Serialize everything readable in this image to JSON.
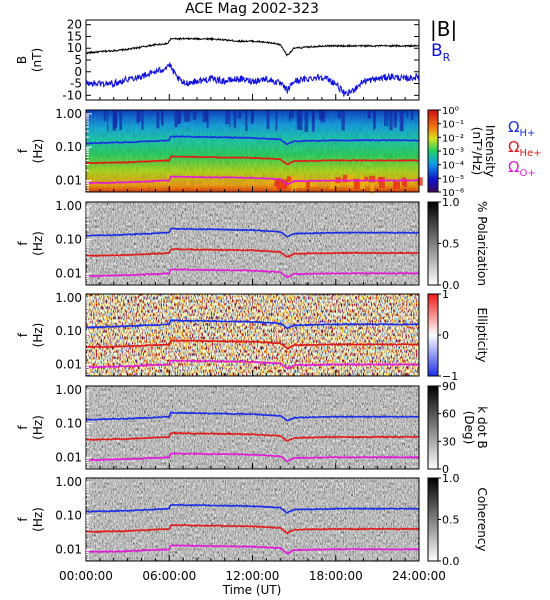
{
  "title": "ACE Mag 2002-323",
  "x_axis": {
    "label": "Time (UT)",
    "ticks": [
      "00:00:00",
      "06:00:00",
      "12:00:00",
      "18:00:00",
      "24:00:00"
    ],
    "range_hours": [
      0,
      24
    ]
  },
  "colors": {
    "B_total": "#000000",
    "B_R": "#1010e0",
    "omega_H": "#1a2ee6",
    "omega_He": "#e11a1a",
    "omega_O": "#e21ad8"
  },
  "legend_top": {
    "total": "|B|",
    "radial": "B",
    "radial_sub": "R"
  },
  "legend_gyro": [
    {
      "base": "Ω",
      "sub": "H+",
      "color": "#1a2ee6"
    },
    {
      "base": "Ω",
      "sub": "He+",
      "color": "#e11a1a"
    },
    {
      "base": "Ω",
      "sub": "O+",
      "color": "#e21ad8"
    }
  ],
  "panels": [
    {
      "id": "b",
      "ylabel": [
        "B",
        "(nT)"
      ],
      "yticks": [
        "20",
        "15",
        "10",
        "5",
        "0",
        "-5",
        "-10"
      ]
    },
    {
      "id": "intensity",
      "ylabel": [
        "f",
        "(Hz)"
      ],
      "yticks": [
        "1.00",
        "0.10",
        "0.01"
      ],
      "cbar": {
        "label": "Intensity",
        "label2": "(nT²/Hz)",
        "ticks": [
          "10⁰",
          "10⁻¹",
          "10⁻²",
          "10⁻³",
          "10⁻⁴",
          "10⁻⁵",
          "10⁻⁶"
        ],
        "scale": "jet"
      }
    },
    {
      "id": "polarization",
      "ylabel": [
        "f",
        "(Hz)"
      ],
      "yticks": [
        "1.00",
        "0.10",
        "0.01"
      ],
      "cbar": {
        "label": "% Polarization",
        "label2": "",
        "ticks": [
          "1.0",
          "0.5",
          "0.0"
        ],
        "scale": "gray"
      }
    },
    {
      "id": "ellipticity",
      "ylabel": [
        "f",
        "(Hz)"
      ],
      "yticks": [
        "1.00",
        "0.10",
        "0.01"
      ],
      "cbar": {
        "label": "Ellipticity",
        "label2": "",
        "ticks": [
          "1",
          "0",
          "−1"
        ],
        "scale": "bwr"
      }
    },
    {
      "id": "kdotb",
      "ylabel": [
        "f",
        "(Hz)"
      ],
      "yticks": [
        "1.00",
        "0.10",
        "0.01"
      ],
      "cbar": {
        "label": "k dot B",
        "label2": "(Deg)",
        "ticks": [
          "90",
          "60",
          "30",
          "0"
        ],
        "scale": "gray"
      }
    },
    {
      "id": "coherency",
      "ylabel": [
        "f",
        "(Hz)"
      ],
      "yticks": [
        "1.00",
        "0.10",
        "0.01"
      ],
      "cbar": {
        "label": "Coherency",
        "label2": "",
        "ticks": [
          "1.0",
          "0.5",
          "0.0"
        ],
        "scale": "gray"
      }
    }
  ],
  "chart_data": [
    {
      "type": "line",
      "x_unit": "hours UT",
      "ylim": [
        -12,
        22
      ],
      "series": [
        {
          "name": "|B|",
          "x": [
            0,
            1,
            2,
            3,
            4,
            5,
            5.9,
            6.1,
            7,
            8,
            9,
            10,
            11,
            12,
            13,
            14,
            14.5,
            15,
            16,
            17,
            18,
            19,
            20,
            21,
            22,
            23,
            24
          ],
          "values": [
            8,
            8.5,
            9,
            9.5,
            10.5,
            11.5,
            12,
            14,
            14,
            14,
            14,
            13.5,
            13,
            13,
            12.5,
            11.5,
            7,
            10,
            10.5,
            11,
            11,
            11,
            11,
            11,
            11,
            11,
            11
          ]
        },
        {
          "name": "B_R",
          "x": [
            0,
            1,
            2,
            3,
            4,
            5,
            5.5,
            6,
            6.5,
            7,
            8,
            9,
            10,
            11,
            12,
            13,
            14,
            14.5,
            15,
            16,
            17,
            18,
            18.7,
            19.2,
            20,
            21,
            22,
            23,
            24
          ],
          "values": [
            -5,
            -5,
            -5,
            -3,
            -2,
            0,
            1,
            3,
            -2,
            -5,
            -4,
            -3,
            -4,
            -3,
            -4,
            -3,
            -5,
            -8,
            -4,
            -3,
            -2,
            -5,
            -10,
            -8,
            -4,
            -3,
            -2,
            -3,
            -2
          ]
        }
      ]
    },
    {
      "type": "line",
      "x_unit": "hours UT",
      "y_unit": "Hz",
      "yscale": "log",
      "ylim": [
        0.0045,
        1.3
      ],
      "series": [
        {
          "name": "Ω_H+",
          "x": [
            0,
            3,
            6,
            6.1,
            9,
            12,
            14,
            14.5,
            15,
            18,
            21,
            24
          ],
          "values": [
            0.13,
            0.14,
            0.16,
            0.21,
            0.2,
            0.19,
            0.17,
            0.12,
            0.15,
            0.16,
            0.16,
            0.16
          ]
        },
        {
          "name": "Ω_He+",
          "x": [
            0,
            3,
            6,
            6.1,
            9,
            12,
            14,
            14.5,
            15,
            18,
            21,
            24
          ],
          "values": [
            0.033,
            0.035,
            0.04,
            0.052,
            0.05,
            0.048,
            0.043,
            0.03,
            0.038,
            0.04,
            0.04,
            0.04
          ]
        },
        {
          "name": "Ω_O+",
          "x": [
            0,
            3,
            6,
            6.1,
            9,
            12,
            14,
            14.5,
            15,
            18,
            21,
            24
          ],
          "values": [
            0.0083,
            0.0088,
            0.01,
            0.013,
            0.0125,
            0.012,
            0.0108,
            0.0075,
            0.0095,
            0.01,
            0.01,
            0.01
          ]
        }
      ]
    }
  ]
}
